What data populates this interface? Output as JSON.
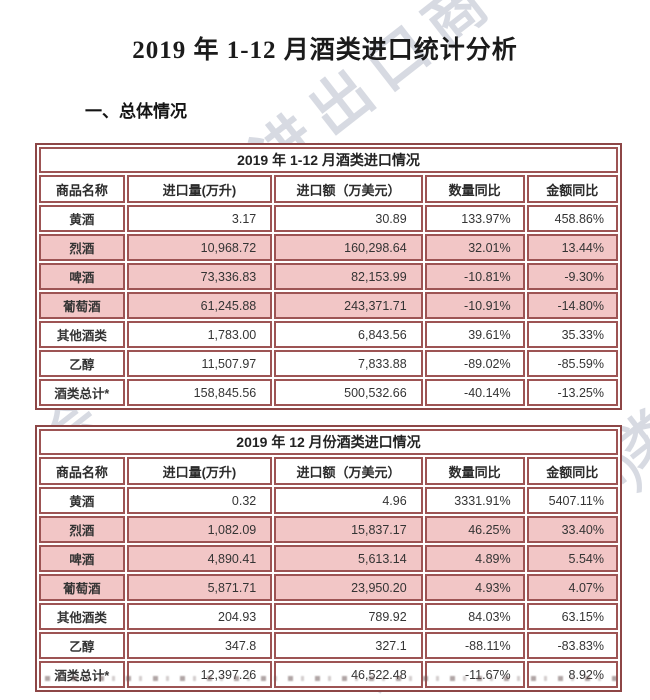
{
  "page": {
    "title": "2019 年 1-12 月酒类进口统计分析",
    "section_heading": "一、总体情况"
  },
  "watermarks": [
    {
      "text": "进出口商"
    },
    {
      "text": "会（CAWS）"
    },
    {
      "text": "酒类进出"
    },
    {
      "text": "会（CAWS）"
    }
  ],
  "colors": {
    "table_border": "#9d5454",
    "table_border_outer": "#8d4646",
    "highlight_row": "#f2c6c6",
    "watermark": "rgba(122,134,158,0.30)"
  },
  "tables": [
    {
      "title": "2019 年 1-12 月酒类进口情况",
      "columns": [
        "商品名称",
        "进口量(万升)",
        "进口额（万美元）",
        "数量同比",
        "金额同比"
      ],
      "rows": [
        {
          "name": "黄酒",
          "volume": "3.17",
          "value": "30.89",
          "volume_yoy": "133.97%",
          "value_yoy": "458.86%",
          "highlight": false
        },
        {
          "name": "烈酒",
          "volume": "10,968.72",
          "value": "160,298.64",
          "volume_yoy": "32.01%",
          "value_yoy": "13.44%",
          "highlight": true
        },
        {
          "name": "啤酒",
          "volume": "73,336.83",
          "value": "82,153.99",
          "volume_yoy": "-10.81%",
          "value_yoy": "-9.30%",
          "highlight": true
        },
        {
          "name": "葡萄酒",
          "volume": "61,245.88",
          "value": "243,371.71",
          "volume_yoy": "-10.91%",
          "value_yoy": "-14.80%",
          "highlight": true
        },
        {
          "name": "其他酒类",
          "volume": "1,783.00",
          "value": "6,843.56",
          "volume_yoy": "39.61%",
          "value_yoy": "35.33%",
          "highlight": false
        },
        {
          "name": "乙醇",
          "volume": "11,507.97",
          "value": "7,833.88",
          "volume_yoy": "-89.02%",
          "value_yoy": "-85.59%",
          "highlight": false
        },
        {
          "name": "酒类总计*",
          "volume": "158,845.56",
          "value": "500,532.66",
          "volume_yoy": "-40.14%",
          "value_yoy": "-13.25%",
          "highlight": false
        }
      ]
    },
    {
      "title": "2019 年 12 月份酒类进口情况",
      "columns": [
        "商品名称",
        "进口量(万升)",
        "进口额（万美元）",
        "数量同比",
        "金额同比"
      ],
      "rows": [
        {
          "name": "黄酒",
          "volume": "0.32",
          "value": "4.96",
          "volume_yoy": "3331.91%",
          "value_yoy": "5407.11%",
          "highlight": false
        },
        {
          "name": "烈酒",
          "volume": "1,082.09",
          "value": "15,837.17",
          "volume_yoy": "46.25%",
          "value_yoy": "33.40%",
          "highlight": true
        },
        {
          "name": "啤酒",
          "volume": "4,890.41",
          "value": "5,613.14",
          "volume_yoy": "4.89%",
          "value_yoy": "5.54%",
          "highlight": true
        },
        {
          "name": "葡萄酒",
          "volume": "5,871.71",
          "value": "23,950.20",
          "volume_yoy": "4.93%",
          "value_yoy": "4.07%",
          "highlight": true
        },
        {
          "name": "其他酒类",
          "volume": "204.93",
          "value": "789.92",
          "volume_yoy": "84.03%",
          "value_yoy": "63.15%",
          "highlight": false
        },
        {
          "name": "乙醇",
          "volume": "347.8",
          "value": "327.1",
          "volume_yoy": "-88.11%",
          "value_yoy": "-83.83%",
          "highlight": false
        },
        {
          "name": "酒类总计*",
          "volume": "12,397.26",
          "value": "46,522.48",
          "volume_yoy": "-11.67%",
          "value_yoy": "8.92%",
          "highlight": false
        }
      ]
    }
  ]
}
